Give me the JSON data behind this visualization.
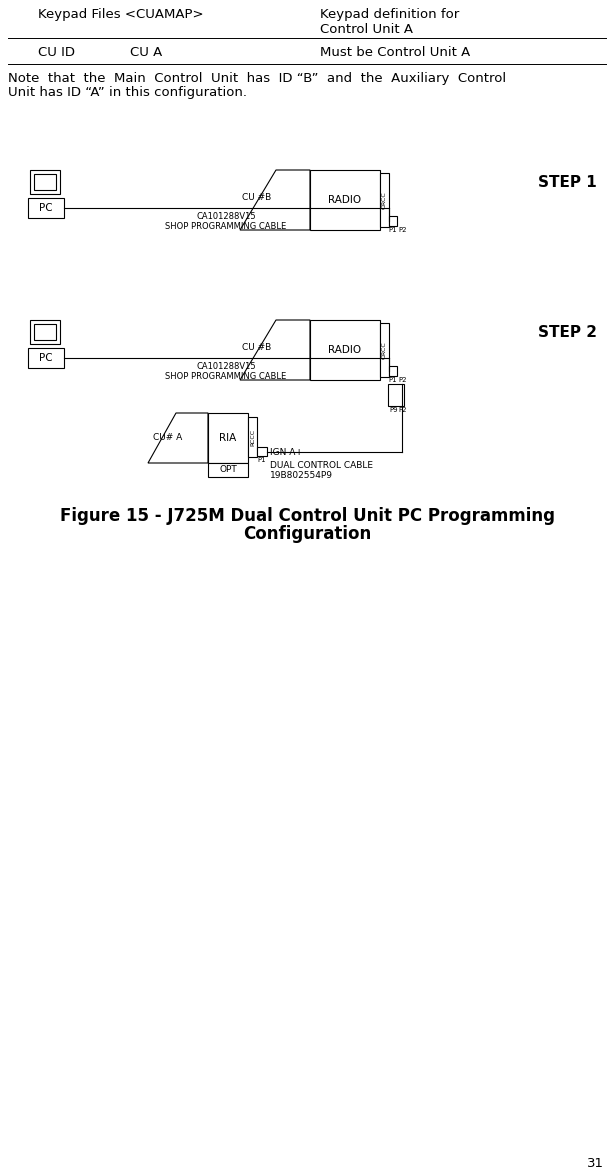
{
  "bg_color": "#ffffff",
  "page_number": "31",
  "header_col1": "Keypad Files <CUAMAP>",
  "header_col2": "Keypad definition for\nControl Unit A",
  "row_col1": "CU ID",
  "row_col2": "CU A",
  "row_col3": "Must be Control Unit A",
  "note_line1": "Note  that  the  Main  Control  Unit  has  ID “B”  and  the  Auxiliary  Control",
  "note_line2": "Unit has ID “A” in this configuration.",
  "step1_label": "STEP 1",
  "step2_label": "STEP 2",
  "cable_label": "CA101288V15\nSHOP PROGRAMMING CABLE",
  "dual_cable_label": "DUAL CONTROL CABLE\n19B802554P9",
  "igna_label": "IGN A+",
  "radio_label": "RADIO",
  "orcc_label": "ORCC",
  "cub_label": "CU #B",
  "cua_label": "CU# A",
  "ria_label": "RIA",
  "rccc_label": "RCCC",
  "pc_label": "PC",
  "opt_label": "OPT",
  "p1_label": "P1",
  "p2_label": "P2",
  "p9_label": "P9",
  "figure_caption_line1": "Figure 15 - J725M Dual Control Unit PC Programming",
  "figure_caption_line2": "Configuration"
}
